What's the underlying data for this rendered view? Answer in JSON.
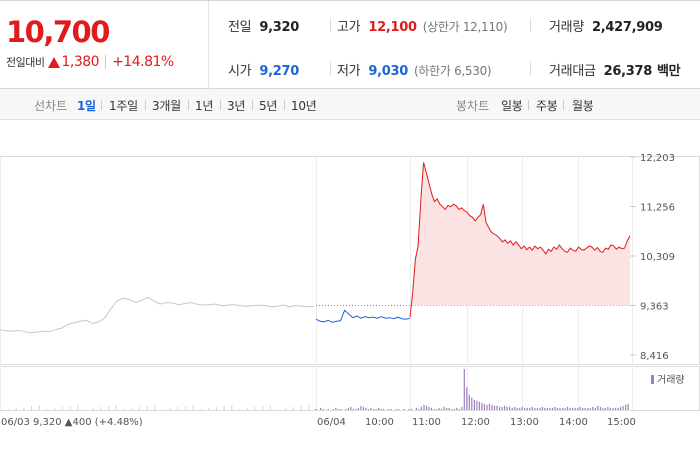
{
  "quote": {
    "price": "10,700",
    "change_label": "전일대비",
    "change_value": "1,380",
    "change_pct": "+14.81%"
  },
  "stats": {
    "prev_close_label": "전일",
    "prev_close": "9,320",
    "high_label": "고가",
    "high": "12,100",
    "upper_limit": "(상한가 12,110)",
    "volume_label": "거래량",
    "volume": "2,427,909",
    "open_label": "시가",
    "open": "9,270",
    "low_label": "저가",
    "low": "9,030",
    "lower_limit": "(하한가 6,530)",
    "trade_value_label": "거래대금",
    "trade_value": "26,378",
    "trade_value_unit": "백만"
  },
  "toolbar": {
    "line_label": "선차트",
    "line_periods": [
      "1일",
      "1주일",
      "3개월",
      "1년",
      "3년",
      "5년",
      "10년"
    ],
    "active_period": "1일",
    "candle_label": "봉차트",
    "candle_periods": [
      "일봉",
      "주봉",
      "월봉"
    ]
  },
  "colors": {
    "up": "#e11b1b",
    "down": "#1b64da",
    "prev": "#c8c8c8",
    "volume": "#9d7dc0"
  },
  "chart_data": [
    {
      "type": "area",
      "title": "",
      "xlabel": "",
      "ylabel": "",
      "ylim": [
        8416,
        12203
      ],
      "y_ticks": [
        "12,203",
        "11,256",
        "10,309",
        "9,363",
        "8,416"
      ],
      "reference_line": 9363,
      "x_ticks": [
        "06/03",
        "06/04",
        "10:00",
        "11:00",
        "12:00",
        "13:00",
        "14:00",
        "15:00"
      ],
      "series": [
        {
          "values": [
            8900,
            8880,
            8870,
            8890,
            8860,
            8840,
            8850,
            8870,
            8860,
            8900,
            8930,
            9000,
            9030,
            9060,
            9080,
            9020,
            9050,
            9120,
            9300,
            9450,
            9500,
            9480,
            9420,
            9460,
            9520,
            9450,
            9390,
            9420,
            9410,
            9380,
            9400,
            9420,
            9390,
            9370,
            9380,
            9390,
            9360,
            9370,
            9380,
            9360,
            9350,
            9360,
            9370,
            9360,
            9340,
            9350,
            9370,
            9340,
            9360,
            9350,
            9340,
            9345
          ]
        },
        {
          "values": [
            9100,
            9060,
            9050,
            9080,
            9040,
            9060,
            9070,
            9270,
            9200,
            9130,
            9160,
            9120,
            9150,
            9130,
            9140,
            9120,
            9150,
            9120,
            9130,
            9110,
            9140,
            9110,
            9100,
            9120
          ]
        },
        {
          "values": [
            9140,
            9600,
            10250,
            10500,
            11400,
            12100,
            11900,
            11700,
            11500,
            11350,
            11400,
            11300,
            11250,
            11200,
            11280,
            11250,
            11300,
            11270,
            11200,
            11230,
            11180,
            11150,
            11080,
            11050,
            10980,
            11050,
            11100,
            11300,
            10950,
            10850,
            10760,
            10730,
            10700,
            10650,
            10580,
            10620,
            10550,
            10600,
            10520,
            10580,
            10520,
            10450,
            10500,
            10430,
            10480,
            10420,
            10500,
            10450,
            10480,
            10420,
            10350,
            10440,
            10400,
            10480,
            10440,
            10520,
            10450,
            10400,
            10380,
            10460,
            10420,
            10400,
            10480,
            10440,
            10420,
            10460,
            10500,
            10480,
            10420,
            10470,
            10400,
            10380,
            10460,
            10440,
            10520,
            10500,
            10440,
            10480,
            10450,
            10460,
            10600,
            10700
          ]
        }
      ]
    },
    {
      "type": "bar",
      "title": "",
      "legend": [
        "거래량"
      ],
      "legend_position": "top-right",
      "annotations": {
        "prev_date": "06/03",
        "prev_close": "9,320",
        "prev_change": "400",
        "prev_pct": "(+4.48%)"
      },
      "values": [
        1,
        0,
        2,
        1,
        0,
        1,
        0,
        1,
        2,
        1,
        1,
        0,
        1,
        2,
        3,
        1,
        1,
        2,
        4,
        3,
        2,
        1,
        2,
        1,
        1,
        2,
        1,
        1,
        0,
        1,
        1,
        0,
        1,
        1,
        0,
        1,
        0,
        1,
        1,
        0,
        2,
        1,
        3,
        5,
        4,
        3,
        2,
        1,
        1,
        2,
        1,
        3,
        2,
        2,
        1,
        1,
        2,
        1,
        3,
        40,
        22,
        15,
        12,
        10,
        9,
        8,
        7,
        6,
        5,
        6,
        5,
        4,
        4,
        3,
        3,
        4,
        3,
        3,
        2,
        3,
        2,
        2,
        3,
        2,
        2,
        2,
        3,
        2,
        2,
        2,
        3,
        2,
        2,
        2,
        2,
        3,
        2,
        2,
        2,
        2,
        3,
        2,
        2,
        2,
        2,
        3,
        2,
        2,
        2,
        2,
        3,
        2,
        4,
        3,
        2,
        2,
        3,
        2,
        2,
        2,
        2,
        3,
        4,
        5,
        6
      ]
    }
  ]
}
